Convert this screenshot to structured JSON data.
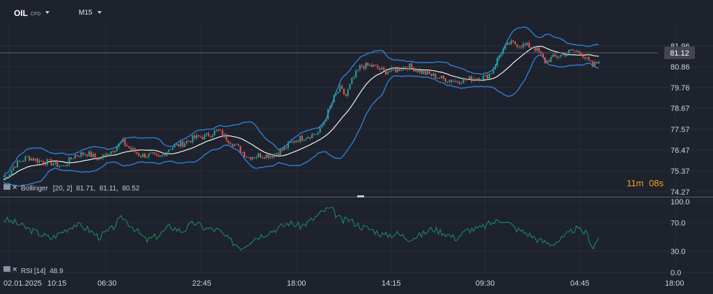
{
  "header": {
    "symbol": "OIL",
    "symbol_tag": "CFD",
    "timeframe": "M15"
  },
  "colors": {
    "background": "#1e222d",
    "grid": "#2a2e39",
    "bollinger": "#2f7fd6",
    "middle_band": "#f5f5ee",
    "price_up": "#26a69a",
    "price_down": "#ef5350",
    "rsi_line": "#1b8a5a",
    "countdown_minutes": "#f7a21b",
    "current_price_tag": "#434651"
  },
  "countdown": {
    "minutes": "11m",
    "seconds": "08s"
  },
  "current_price": "81.12",
  "indicators": {
    "bollinger_label": "Bollinger",
    "bollinger_values": "[20, 2]  81.71,  81.11,  80.52",
    "rsi_label": "RSI",
    "rsi_values": "[14]  48.9"
  },
  "chart_data": [
    {
      "type": "candlestick",
      "panel": "price",
      "x_tick_labels": [
        "02.01.2025",
        "10:15",
        "06:30",
        "22:45",
        "18:00",
        "14:15",
        "09:30",
        "04:45",
        "18:00"
      ],
      "y_tick_labels": [
        "81.96",
        "80.86",
        "79.76",
        "78.67",
        "77.57",
        "76.47",
        "75.37",
        "74.27"
      ],
      "ylim": [
        74.27,
        82.5
      ],
      "grid": true,
      "current_value": 81.12,
      "close_path": [
        [
          0,
          74.9
        ],
        [
          0.02,
          75.7
        ],
        [
          0.04,
          76.1
        ],
        [
          0.06,
          75.9
        ],
        [
          0.08,
          75.8
        ],
        [
          0.1,
          75.6
        ],
        [
          0.12,
          76.2
        ],
        [
          0.14,
          76.3
        ],
        [
          0.16,
          76.0
        ],
        [
          0.18,
          76.4
        ],
        [
          0.2,
          76.9
        ],
        [
          0.21,
          76.6
        ],
        [
          0.23,
          76.2
        ],
        [
          0.25,
          76.2
        ],
        [
          0.26,
          76.0
        ],
        [
          0.28,
          76.6
        ],
        [
          0.3,
          76.8
        ],
        [
          0.32,
          77.1
        ],
        [
          0.34,
          77.2
        ],
        [
          0.36,
          77.5
        ],
        [
          0.37,
          77.2
        ],
        [
          0.39,
          76.7
        ],
        [
          0.41,
          76.1
        ],
        [
          0.43,
          76.2
        ],
        [
          0.45,
          76.2
        ],
        [
          0.47,
          76.5
        ],
        [
          0.49,
          77.0
        ],
        [
          0.51,
          77.2
        ],
        [
          0.53,
          77.4
        ],
        [
          0.54,
          78.1
        ],
        [
          0.555,
          79.2
        ],
        [
          0.565,
          79.7
        ],
        [
          0.575,
          79.3
        ],
        [
          0.585,
          80.1
        ],
        [
          0.6,
          80.9
        ],
        [
          0.62,
          80.9
        ],
        [
          0.64,
          80.6
        ],
        [
          0.66,
          80.7
        ],
        [
          0.68,
          80.9
        ],
        [
          0.7,
          80.6
        ],
        [
          0.72,
          80.4
        ],
        [
          0.74,
          80.2
        ],
        [
          0.76,
          80.1
        ],
        [
          0.78,
          80.2
        ],
        [
          0.8,
          80.3
        ],
        [
          0.81,
          80.3
        ],
        [
          0.82,
          80.6
        ],
        [
          0.835,
          81.6
        ],
        [
          0.85,
          82.1
        ],
        [
          0.87,
          82.0
        ],
        [
          0.89,
          81.9
        ],
        [
          0.9,
          81.6
        ],
        [
          0.91,
          81.1
        ],
        [
          0.92,
          81.3
        ],
        [
          0.94,
          81.5
        ],
        [
          0.955,
          81.7
        ],
        [
          0.97,
          81.6
        ],
        [
          0.98,
          81.2
        ],
        [
          0.99,
          80.9
        ],
        [
          1.0,
          81.12
        ]
      ],
      "bollinger": {
        "period": 20,
        "deviation": 2,
        "upper": 81.71,
        "middle": 81.11,
        "lower": 80.52
      }
    },
    {
      "type": "line",
      "panel": "rsi",
      "y_tick_labels": [
        "100.0",
        "70.0",
        "30.0",
        "0.0"
      ],
      "ylim": [
        0,
        100
      ],
      "last_value": 48.9,
      "values": [
        [
          0,
          75
        ],
        [
          0.02,
          70
        ],
        [
          0.04,
          62
        ],
        [
          0.06,
          55
        ],
        [
          0.08,
          48
        ],
        [
          0.1,
          58
        ],
        [
          0.12,
          68
        ],
        [
          0.14,
          62
        ],
        [
          0.16,
          50
        ],
        [
          0.18,
          60
        ],
        [
          0.2,
          78
        ],
        [
          0.22,
          62
        ],
        [
          0.24,
          45
        ],
        [
          0.26,
          52
        ],
        [
          0.28,
          65
        ],
        [
          0.3,
          58
        ],
        [
          0.32,
          70
        ],
        [
          0.34,
          62
        ],
        [
          0.36,
          60
        ],
        [
          0.38,
          45
        ],
        [
          0.4,
          35
        ],
        [
          0.42,
          48
        ],
        [
          0.44,
          55
        ],
        [
          0.46,
          62
        ],
        [
          0.48,
          70
        ],
        [
          0.5,
          65
        ],
        [
          0.52,
          75
        ],
        [
          0.54,
          88
        ],
        [
          0.55,
          90
        ],
        [
          0.56,
          80
        ],
        [
          0.57,
          72
        ],
        [
          0.58,
          75
        ],
        [
          0.6,
          65
        ],
        [
          0.62,
          60
        ],
        [
          0.64,
          52
        ],
        [
          0.66,
          55
        ],
        [
          0.68,
          48
        ],
        [
          0.7,
          52
        ],
        [
          0.72,
          62
        ],
        [
          0.74,
          56
        ],
        [
          0.76,
          48
        ],
        [
          0.78,
          60
        ],
        [
          0.8,
          62
        ],
        [
          0.82,
          70
        ],
        [
          0.84,
          75
        ],
        [
          0.86,
          62
        ],
        [
          0.88,
          55
        ],
        [
          0.9,
          45
        ],
        [
          0.92,
          40
        ],
        [
          0.94,
          48
        ],
        [
          0.96,
          62
        ],
        [
          0.98,
          55
        ],
        [
          0.99,
          35
        ],
        [
          1.0,
          48.9
        ]
      ]
    }
  ]
}
